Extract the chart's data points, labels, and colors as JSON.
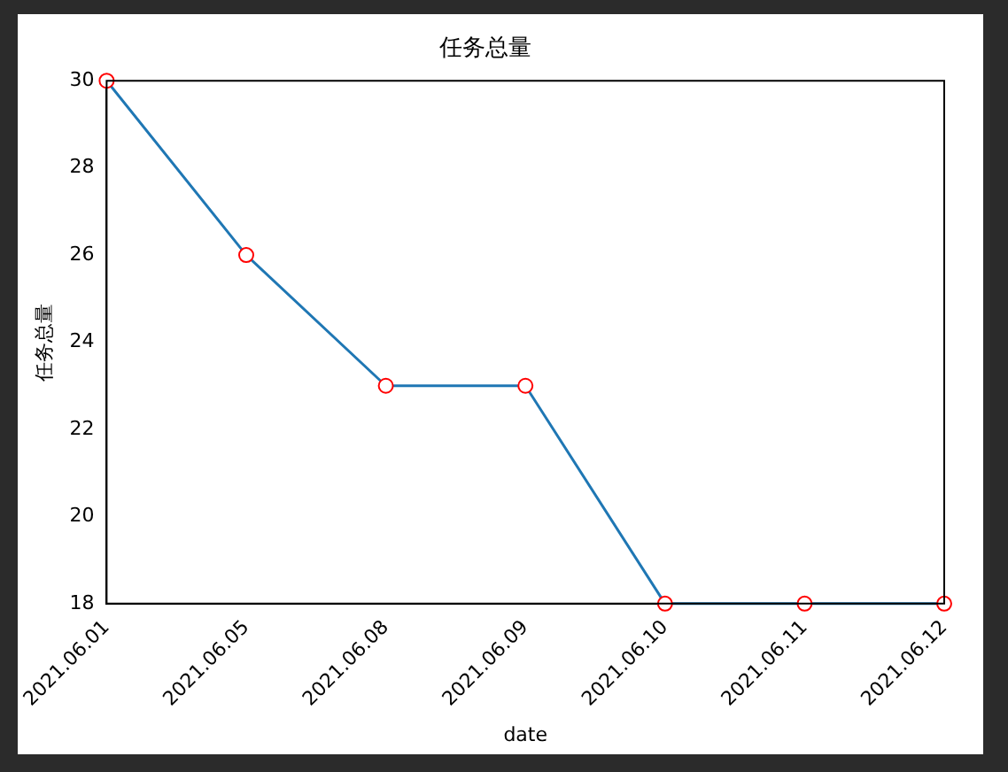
{
  "chart_data": {
    "type": "line",
    "title": "任务总量",
    "xlabel": "date",
    "ylabel": "任务总量",
    "categories": [
      "2021.06.01",
      "2021.06.05",
      "2021.06.08",
      "2021.06.09",
      "2021.06.10",
      "2021.06.11",
      "2021.06.12"
    ],
    "series": [
      {
        "color": "#1f77b4",
        "values": [
          30,
          26,
          23,
          23,
          18,
          18,
          18
        ]
      }
    ],
    "ylim": [
      18,
      30
    ],
    "yticks": [
      18,
      20,
      22,
      24,
      26,
      28,
      30
    ],
    "grid": false,
    "marker": "circle",
    "line_style": "solid"
  }
}
